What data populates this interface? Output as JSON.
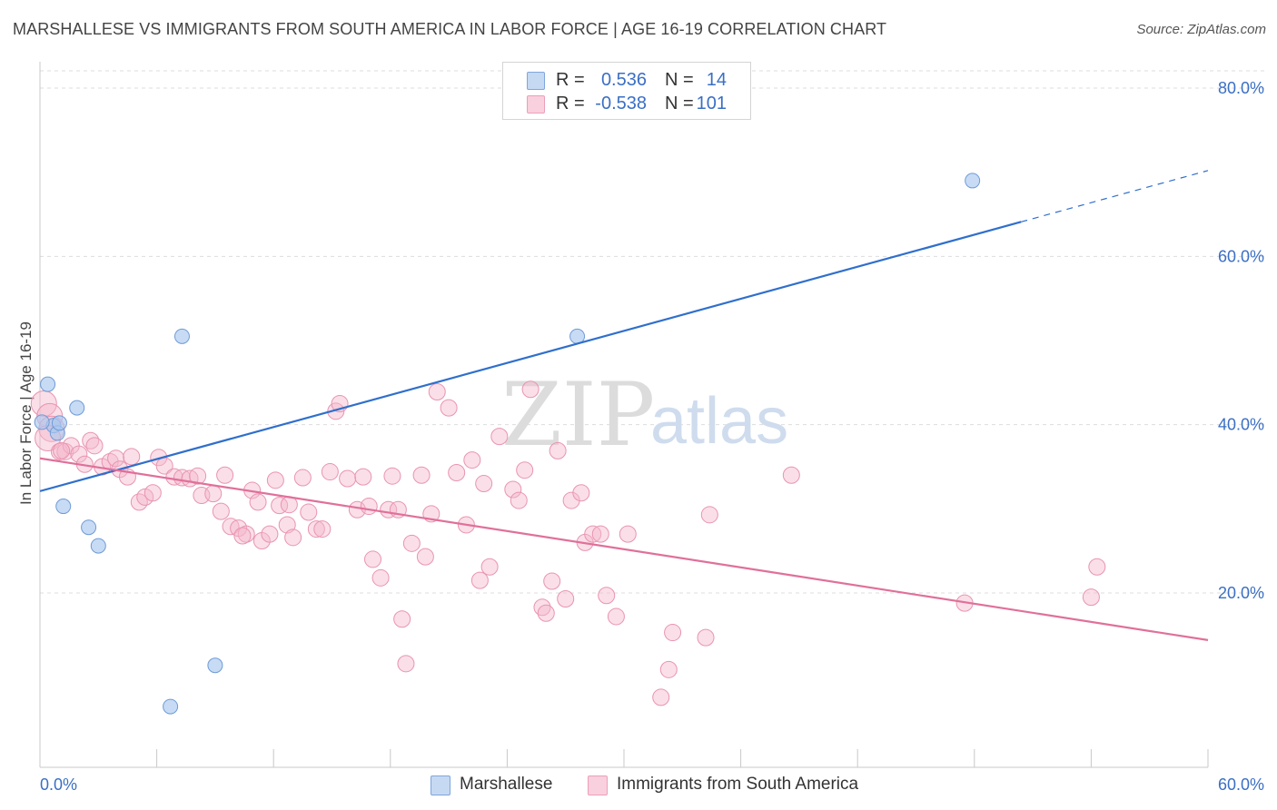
{
  "header": {
    "title": "MARSHALLESE VS IMMIGRANTS FROM SOUTH AMERICA IN LABOR FORCE | AGE 16-19 CORRELATION CHART",
    "source": "Source: ZipAtlas.com"
  },
  "legend": {
    "rows": [
      {
        "r_label": "R =",
        "r_value": "0.536",
        "n_label": "N =",
        "n_value": "14",
        "color": "#a9c8ef"
      },
      {
        "r_label": "R =",
        "r_value": "-0.538",
        "n_label": "N =",
        "n_value": "101",
        "color": "#f5b8cb"
      }
    ]
  },
  "bottom_legend": {
    "items": [
      {
        "label": "Marshallese",
        "color": "#a9c8ef"
      },
      {
        "label": "Immigrants from South America",
        "color": "#f5b8cb"
      }
    ]
  },
  "watermark": {
    "zip": "ZIP",
    "atlas": "atlas"
  },
  "colors": {
    "blue_fill": "#a9c8ef",
    "blue_stroke": "#6f9bd6",
    "blue_line": "#2f6fcc",
    "pink_fill": "#f5b8cb",
    "pink_stroke": "#e994b0",
    "pink_line": "#e0709a",
    "grid": "#dddddd",
    "tick_text": "#3a6fc4"
  },
  "chart_data": {
    "type": "scatter",
    "title": "MARSHALLESE VS IMMIGRANTS FROM SOUTH AMERICA IN LABOR FORCE | AGE 16-19 CORRELATION CHART",
    "xlabel": "",
    "ylabel": "In Labor Force | Age 16-19",
    "xlim": [
      0,
      60
    ],
    "ylim": [
      0,
      84
    ],
    "x_tick_labels": [
      "0.0%",
      "60.0%"
    ],
    "y_ticks": [
      20,
      40,
      60,
      80
    ],
    "y_tick_labels": [
      "20.0%",
      "40.0%",
      "60.0%",
      "80.0%"
    ],
    "grid": true,
    "legend_position": "top-center",
    "series": [
      {
        "name": "Marshallese",
        "r": 0.536,
        "n": 14,
        "trend": {
          "x0": 0,
          "y0": 32.1,
          "x1": 50.4,
          "y1": 64.1,
          "dashed_to_x": 60,
          "dashed_to_y": 70.2
        },
        "points": [
          [
            0.4,
            44.8
          ],
          [
            0.7,
            39.9
          ],
          [
            0.9,
            39.0
          ],
          [
            1.0,
            40.2
          ],
          [
            1.9,
            42.0
          ],
          [
            1.2,
            30.3
          ],
          [
            2.5,
            27.8
          ],
          [
            3.0,
            25.6
          ],
          [
            7.3,
            50.5
          ],
          [
            9.0,
            11.4
          ],
          [
            6.7,
            6.5
          ],
          [
            27.6,
            50.5
          ],
          [
            47.9,
            69.0
          ],
          [
            0.1,
            40.3
          ]
        ]
      },
      {
        "name": "Immigrants from South America",
        "r": -0.538,
        "n": 101,
        "trend": {
          "x0": 0,
          "y0": 36.0,
          "x1": 60,
          "y1": 14.4
        },
        "points": [
          [
            0.2,
            42.5
          ],
          [
            0.5,
            41.0
          ],
          [
            0.6,
            39.5
          ],
          [
            0.4,
            38.4
          ],
          [
            1.0,
            36.8
          ],
          [
            1.3,
            36.8
          ],
          [
            1.6,
            37.5
          ],
          [
            2.0,
            36.5
          ],
          [
            2.6,
            38.1
          ],
          [
            2.8,
            37.5
          ],
          [
            3.2,
            35.0
          ],
          [
            3.6,
            35.6
          ],
          [
            3.9,
            36.0
          ],
          [
            4.1,
            34.7
          ],
          [
            4.7,
            36.2
          ],
          [
            5.1,
            30.8
          ],
          [
            5.4,
            31.4
          ],
          [
            5.8,
            31.9
          ],
          [
            6.1,
            36.1
          ],
          [
            6.4,
            35.1
          ],
          [
            6.9,
            33.8
          ],
          [
            7.3,
            33.7
          ],
          [
            7.7,
            33.6
          ],
          [
            8.1,
            33.9
          ],
          [
            8.3,
            31.6
          ],
          [
            8.9,
            31.8
          ],
          [
            9.3,
            29.7
          ],
          [
            9.5,
            34.0
          ],
          [
            9.8,
            27.9
          ],
          [
            10.2,
            27.7
          ],
          [
            10.6,
            27.0
          ],
          [
            10.9,
            32.2
          ],
          [
            11.2,
            30.8
          ],
          [
            11.4,
            26.2
          ],
          [
            11.8,
            27.0
          ],
          [
            12.1,
            33.4
          ],
          [
            12.3,
            30.4
          ],
          [
            12.7,
            28.1
          ],
          [
            13.0,
            26.6
          ],
          [
            13.5,
            33.7
          ],
          [
            13.8,
            29.6
          ],
          [
            14.2,
            27.6
          ],
          [
            14.5,
            27.6
          ],
          [
            14.9,
            34.4
          ],
          [
            15.2,
            41.6
          ],
          [
            15.4,
            42.5
          ],
          [
            15.8,
            33.6
          ],
          [
            16.3,
            29.9
          ],
          [
            16.6,
            33.8
          ],
          [
            16.9,
            30.3
          ],
          [
            17.1,
            24.0
          ],
          [
            17.5,
            21.8
          ],
          [
            17.9,
            29.9
          ],
          [
            18.1,
            33.9
          ],
          [
            18.4,
            29.9
          ],
          [
            18.6,
            16.9
          ],
          [
            18.8,
            11.6
          ],
          [
            19.1,
            25.9
          ],
          [
            19.6,
            34.0
          ],
          [
            19.8,
            24.3
          ],
          [
            20.1,
            29.4
          ],
          [
            20.4,
            43.9
          ],
          [
            21.0,
            42.0
          ],
          [
            21.4,
            34.3
          ],
          [
            21.9,
            28.1
          ],
          [
            22.2,
            35.8
          ],
          [
            22.6,
            21.5
          ],
          [
            22.8,
            33.0
          ],
          [
            23.1,
            23.1
          ],
          [
            23.6,
            38.6
          ],
          [
            24.3,
            32.3
          ],
          [
            24.6,
            31.0
          ],
          [
            24.9,
            34.6
          ],
          [
            25.2,
            44.2
          ],
          [
            25.8,
            18.3
          ],
          [
            26.0,
            17.6
          ],
          [
            26.3,
            21.4
          ],
          [
            26.6,
            36.9
          ],
          [
            27.0,
            19.3
          ],
          [
            27.3,
            31.0
          ],
          [
            27.8,
            31.9
          ],
          [
            28.0,
            26.0
          ],
          [
            28.4,
            27.0
          ],
          [
            28.8,
            27.0
          ],
          [
            29.1,
            19.7
          ],
          [
            29.6,
            17.2
          ],
          [
            30.2,
            27.0
          ],
          [
            31.9,
            7.6
          ],
          [
            32.3,
            10.9
          ],
          [
            32.5,
            15.3
          ],
          [
            34.2,
            14.7
          ],
          [
            34.4,
            29.3
          ],
          [
            38.6,
            34.0
          ],
          [
            47.5,
            18.8
          ],
          [
            54.0,
            19.5
          ],
          [
            54.3,
            23.1
          ],
          [
            1.1,
            36.9
          ],
          [
            2.3,
            35.3
          ],
          [
            4.5,
            33.8
          ],
          [
            12.8,
            30.5
          ],
          [
            10.4,
            26.8
          ]
        ]
      }
    ]
  }
}
